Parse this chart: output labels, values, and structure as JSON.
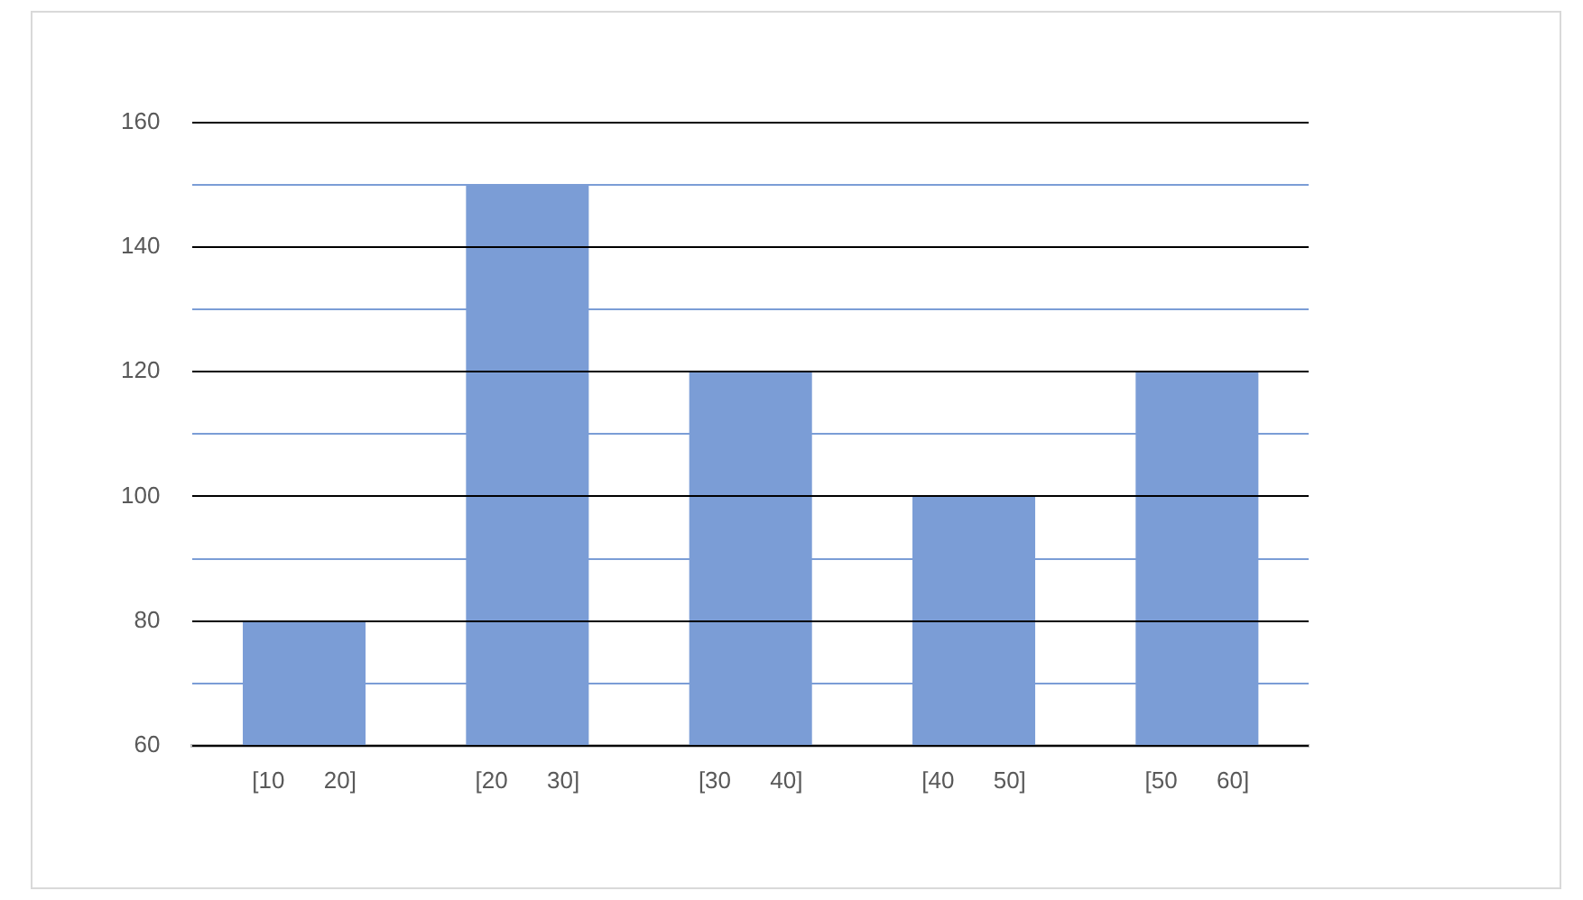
{
  "chart_data": {
    "type": "bar",
    "categories": [
      "[10      20]",
      "[20      30]",
      "[30      40]",
      "[40      50]",
      "[50      60]"
    ],
    "values": [
      80,
      150,
      120,
      100,
      120
    ],
    "color": "#7b9dd6",
    "ylim": [
      60,
      160
    ],
    "yticks": [
      60,
      {
        "value": 70,
        "label": null
      },
      80,
      {
        "value": 90,
        "label": null
      },
      100,
      {
        "value": 110,
        "label": null
      },
      120,
      {
        "value": 130,
        "label": null
      },
      140,
      {
        "value": 150,
        "label": null
      },
      160
    ],
    "grid": "y",
    "legend": false
  }
}
